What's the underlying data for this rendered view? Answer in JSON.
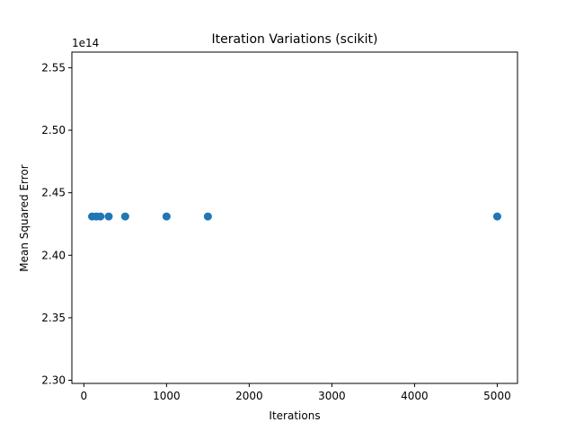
{
  "chart_data": {
    "type": "scatter",
    "title": "Iteration Variations (scikit)",
    "xlabel": "Iterations",
    "ylabel": "Mean Squared Error",
    "y_offset_label": "1e14",
    "xlim": [
      -145,
      5245
    ],
    "ylim": [
      2.2975,
      2.5625
    ],
    "xticks": [
      0,
      1000,
      2000,
      3000,
      4000,
      5000
    ],
    "xtick_labels": [
      "0",
      "1000",
      "2000",
      "3000",
      "4000",
      "5000"
    ],
    "yticks": [
      2.3,
      2.35,
      2.4,
      2.45,
      2.5,
      2.55
    ],
    "ytick_labels": [
      "2.30",
      "2.35",
      "2.40",
      "2.45",
      "2.50",
      "2.55"
    ],
    "grid": false,
    "marker_color": "#1f77b4",
    "x": [
      100,
      150,
      200,
      300,
      500,
      1000,
      1500,
      5000
    ],
    "y": [
      2.431,
      2.431,
      2.431,
      2.431,
      2.431,
      2.431,
      2.431,
      2.431
    ]
  }
}
